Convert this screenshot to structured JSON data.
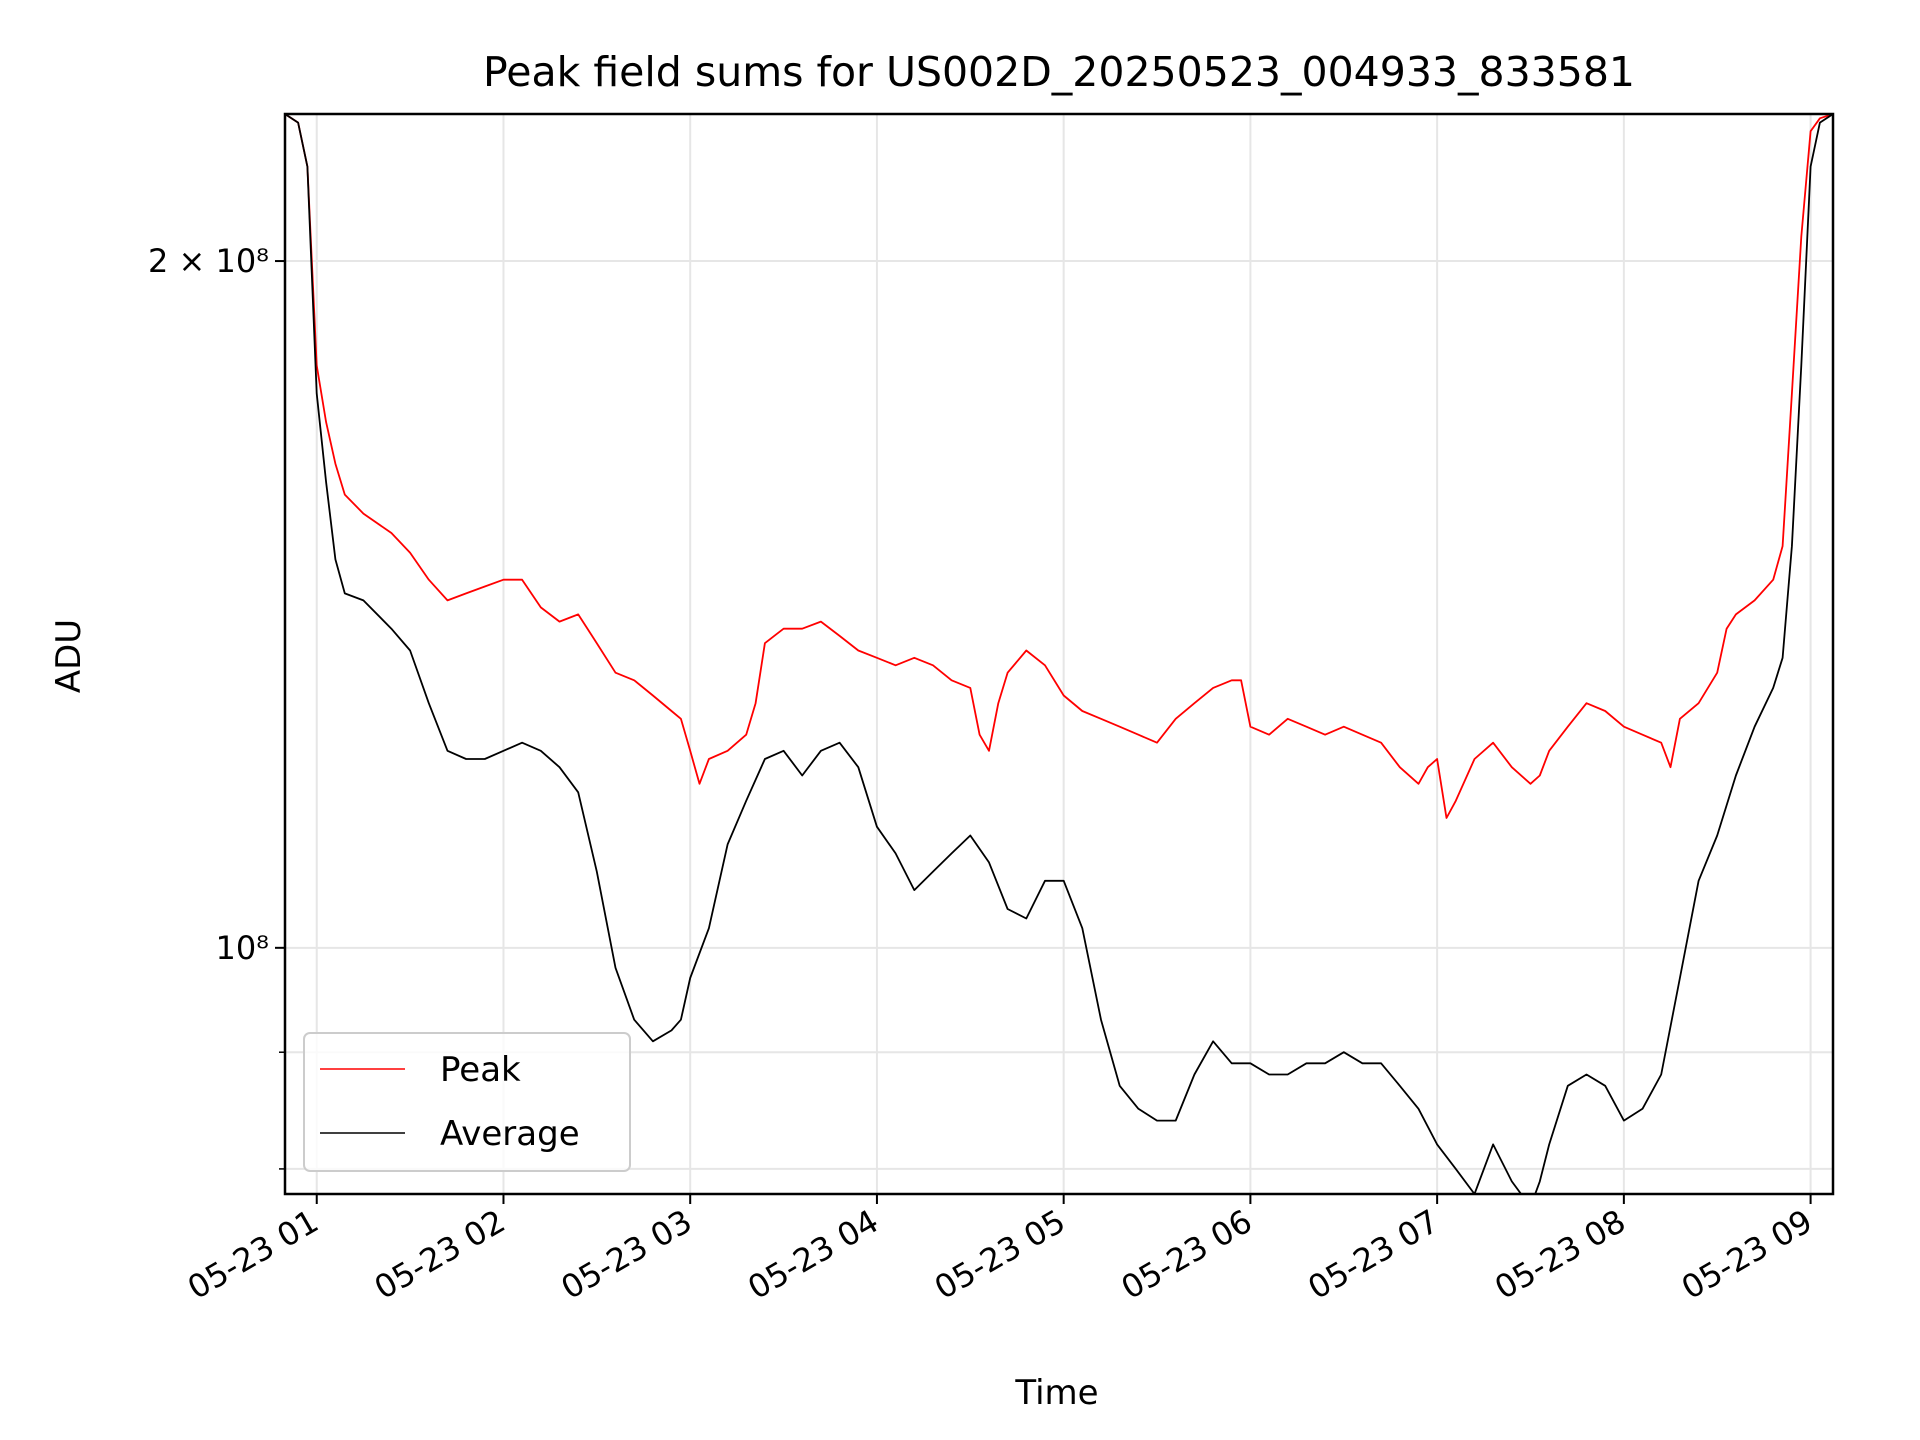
{
  "chart_data": {
    "type": "line",
    "title": "Peak field sums for US002D_20250523_004933_833581",
    "xlabel": "Time",
    "ylabel": "ADU",
    "yscale": "log",
    "xlim": [
      0.83,
      9.12
    ],
    "ylim": [
      78000000,
      232000000
    ],
    "x_unit": "hours since 2025-05-23 00:00",
    "x_ticks": [
      {
        "value": 1,
        "label": "05-23 01"
      },
      {
        "value": 2,
        "label": "05-23 02"
      },
      {
        "value": 3,
        "label": "05-23 03"
      },
      {
        "value": 4,
        "label": "05-23 04"
      },
      {
        "value": 5,
        "label": "05-23 05"
      },
      {
        "value": 6,
        "label": "05-23 06"
      },
      {
        "value": 7,
        "label": "05-23 07"
      },
      {
        "value": 8,
        "label": "05-23 08"
      },
      {
        "value": 9,
        "label": "05-23 09"
      }
    ],
    "y_ticks": [
      {
        "value": 200000000,
        "label": "2 × 10⁸"
      },
      {
        "value": 100000000,
        "label": "10⁸"
      }
    ],
    "y_minor_grid": [
      90000000,
      80000000
    ],
    "grid": true,
    "legend_placement": "lower-left",
    "series": [
      {
        "name": "Peak",
        "color": "#ff0000",
        "x": [
          0.83,
          0.9,
          0.95,
          1.0,
          1.05,
          1.1,
          1.15,
          1.25,
          1.4,
          1.5,
          1.6,
          1.7,
          1.8,
          1.9,
          2.0,
          2.1,
          2.2,
          2.3,
          2.4,
          2.5,
          2.6,
          2.7,
          2.8,
          2.9,
          2.95,
          3.0,
          3.05,
          3.1,
          3.2,
          3.3,
          3.35,
          3.4,
          3.45,
          3.5,
          3.6,
          3.7,
          3.8,
          3.9,
          4.0,
          4.1,
          4.2,
          4.3,
          4.4,
          4.5,
          4.55,
          4.6,
          4.65,
          4.7,
          4.8,
          4.9,
          5.0,
          5.1,
          5.2,
          5.3,
          5.4,
          5.5,
          5.6,
          5.7,
          5.8,
          5.9,
          5.95,
          6.0,
          6.1,
          6.2,
          6.3,
          6.4,
          6.5,
          6.6,
          6.7,
          6.8,
          6.9,
          6.95,
          7.0,
          7.05,
          7.1,
          7.2,
          7.3,
          7.4,
          7.5,
          7.55,
          7.6,
          7.7,
          7.8,
          7.9,
          8.0,
          8.1,
          8.2,
          8.25,
          8.3,
          8.4,
          8.5,
          8.55,
          8.6,
          8.7,
          8.8,
          8.85,
          8.9,
          8.95,
          9.0,
          9.05,
          9.12
        ],
        "y": [
          232000000,
          230000000,
          220000000,
          180000000,
          170000000,
          163000000,
          158000000,
          155000000,
          152000000,
          149000000,
          145000000,
          142000000,
          143000000,
          144000000,
          145000000,
          145000000,
          141000000,
          139000000,
          140000000,
          136000000,
          132000000,
          131000000,
          129000000,
          127000000,
          126000000,
          122000000,
          118000000,
          121000000,
          122000000,
          124000000,
          128000000,
          136000000,
          137000000,
          138000000,
          138000000,
          139000000,
          137000000,
          135000000,
          134000000,
          133000000,
          134000000,
          133000000,
          131000000,
          130000000,
          124000000,
          122000000,
          128000000,
          132000000,
          135000000,
          133000000,
          129000000,
          127000000,
          126000000,
          125000000,
          124000000,
          123000000,
          126000000,
          128000000,
          130000000,
          131000000,
          131000000,
          125000000,
          124000000,
          126000000,
          125000000,
          124000000,
          125000000,
          124000000,
          123000000,
          120000000,
          118000000,
          120000000,
          121000000,
          114000000,
          116000000,
          121000000,
          123000000,
          120000000,
          118000000,
          119000000,
          122000000,
          125000000,
          128000000,
          127000000,
          125000000,
          124000000,
          123000000,
          120000000,
          126000000,
          128000000,
          132000000,
          138000000,
          140000000,
          142000000,
          145000000,
          150000000,
          175000000,
          205000000,
          228000000,
          231000000,
          232000000
        ]
      },
      {
        "name": "Average",
        "color": "#000000",
        "x": [
          0.83,
          0.9,
          0.95,
          1.0,
          1.05,
          1.1,
          1.15,
          1.25,
          1.4,
          1.5,
          1.6,
          1.7,
          1.8,
          1.9,
          2.0,
          2.1,
          2.2,
          2.3,
          2.4,
          2.5,
          2.6,
          2.7,
          2.8,
          2.9,
          2.95,
          3.0,
          3.1,
          3.2,
          3.3,
          3.4,
          3.5,
          3.6,
          3.7,
          3.8,
          3.9,
          4.0,
          4.1,
          4.2,
          4.3,
          4.4,
          4.5,
          4.6,
          4.7,
          4.8,
          4.9,
          5.0,
          5.1,
          5.2,
          5.3,
          5.4,
          5.5,
          5.6,
          5.7,
          5.8,
          5.9,
          6.0,
          6.1,
          6.2,
          6.3,
          6.4,
          6.5,
          6.6,
          6.7,
          6.8,
          6.9,
          7.0,
          7.1,
          7.2,
          7.3,
          7.4,
          7.5,
          7.55,
          7.6,
          7.7,
          7.8,
          7.9,
          8.0,
          8.1,
          8.2,
          8.3,
          8.4,
          8.5,
          8.6,
          8.7,
          8.8,
          8.85,
          8.9,
          8.95,
          9.0,
          9.05,
          9.12
        ],
        "y": [
          232000000,
          230000000,
          220000000,
          175000000,
          160000000,
          148000000,
          143000000,
          142000000,
          138000000,
          135000000,
          128000000,
          122000000,
          121000000,
          121000000,
          122000000,
          123000000,
          122000000,
          120000000,
          117000000,
          108000000,
          98000000,
          93000000,
          91000000,
          92000000,
          93000000,
          97000000,
          102000000,
          111000000,
          116000000,
          121000000,
          122000000,
          119000000,
          122000000,
          123000000,
          120000000,
          113000000,
          110000000,
          106000000,
          108000000,
          110000000,
          112000000,
          109000000,
          104000000,
          103000000,
          107000000,
          107000000,
          102000000,
          93000000,
          87000000,
          85000000,
          84000000,
          84000000,
          88000000,
          91000000,
          89000000,
          89000000,
          88000000,
          88000000,
          89000000,
          89000000,
          90000000,
          89000000,
          89000000,
          87000000,
          85000000,
          82000000,
          80000000,
          78000000,
          82000000,
          79000000,
          77000000,
          79000000,
          82000000,
          87000000,
          88000000,
          87000000,
          84000000,
          85000000,
          88000000,
          97000000,
          107000000,
          112000000,
          119000000,
          125000000,
          130000000,
          134000000,
          150000000,
          180000000,
          220000000,
          230000000,
          232000000
        ]
      }
    ]
  }
}
